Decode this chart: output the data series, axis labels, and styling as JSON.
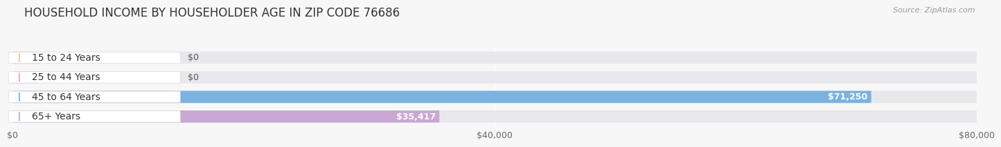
{
  "title": "HOUSEHOLD INCOME BY HOUSEHOLDER AGE IN ZIP CODE 76686",
  "source": "Source: ZipAtlas.com",
  "categories": [
    "15 to 24 Years",
    "25 to 44 Years",
    "45 to 64 Years",
    "65+ Years"
  ],
  "values": [
    0,
    0,
    71250,
    35417
  ],
  "bar_colors": [
    "#f2c49b",
    "#f0a8a8",
    "#7ab3e0",
    "#c9a8d4"
  ],
  "track_color": "#e8e8ec",
  "value_labels": [
    "$0",
    "$0",
    "$71,250",
    "$35,417"
  ],
  "xlim": [
    0,
    80000
  ],
  "xticks": [
    0,
    40000,
    80000
  ],
  "xticklabels": [
    "$0",
    "$40,000",
    "$80,000"
  ],
  "background_color": "#f7f7f7",
  "title_fontsize": 12,
  "label_fontsize": 10,
  "value_fontsize": 9,
  "tick_fontsize": 9,
  "source_fontsize": 8
}
